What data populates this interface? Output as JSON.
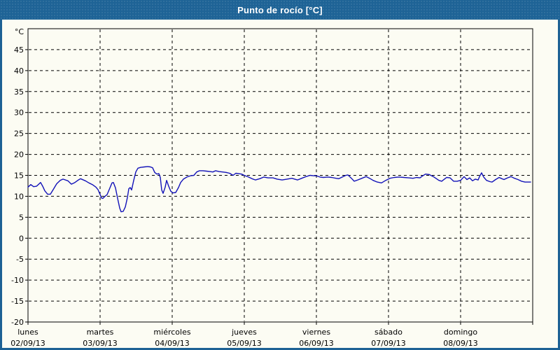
{
  "window": {
    "title": "Punto de rocío [°C]"
  },
  "colors": {
    "titlebar_bg": "#1e6396",
    "titlebar_text": "#ffffff",
    "frame_border": "#1d6194",
    "panel_bg": "#fcfcf3",
    "axis": "#000000",
    "grid": "#000000",
    "label_text": "#000000",
    "line": "#1212b8"
  },
  "chart_data": {
    "type": "line",
    "title": "Punto de rocío [°C]",
    "unit_label": "°C",
    "ylim": [
      -20,
      50
    ],
    "yticks": [
      45,
      40,
      35,
      30,
      25,
      20,
      15,
      10,
      5,
      0,
      -5,
      -10,
      -15,
      -20
    ],
    "grid": "dashed",
    "legend_position": "none",
    "x_days": [
      {
        "name": "lunes",
        "date": "02/09/13"
      },
      {
        "name": "martes",
        "date": "03/09/13"
      },
      {
        "name": "miércoles",
        "date": "04/09/13"
      },
      {
        "name": "jueves",
        "date": "05/09/13"
      },
      {
        "name": "viernes",
        "date": "06/09/13"
      },
      {
        "name": "sábado",
        "date": "07/09/13"
      },
      {
        "name": "domingo",
        "date": "08/09/13"
      }
    ],
    "series": [
      {
        "name": "Punto de rocío",
        "x_unit": "days_since_2013-09-02",
        "points": [
          [
            0.0,
            12.2
          ],
          [
            0.039,
            12.8
          ],
          [
            0.078,
            12.3
          ],
          [
            0.117,
            12.4
          ],
          [
            0.175,
            13.3
          ],
          [
            0.204,
            12.4
          ],
          [
            0.233,
            11.3
          ],
          [
            0.272,
            10.5
          ],
          [
            0.311,
            10.5
          ],
          [
            0.35,
            11.6
          ],
          [
            0.398,
            13.0
          ],
          [
            0.447,
            13.8
          ],
          [
            0.485,
            14.1
          ],
          [
            0.553,
            13.7
          ],
          [
            0.602,
            12.9
          ],
          [
            0.65,
            13.3
          ],
          [
            0.699,
            13.9
          ],
          [
            0.728,
            14.2
          ],
          [
            0.796,
            13.7
          ],
          [
            0.845,
            13.2
          ],
          [
            0.893,
            12.8
          ],
          [
            0.942,
            12.2
          ],
          [
            0.971,
            11.6
          ],
          [
            1.0,
            10.4
          ],
          [
            1.019,
            9.6
          ],
          [
            1.039,
            9.5
          ],
          [
            1.068,
            10.0
          ],
          [
            1.097,
            10.4
          ],
          [
            1.136,
            12.0
          ],
          [
            1.165,
            13.2
          ],
          [
            1.184,
            13.3
          ],
          [
            1.214,
            12.0
          ],
          [
            1.243,
            9.5
          ],
          [
            1.272,
            7.2
          ],
          [
            1.291,
            6.3
          ],
          [
            1.32,
            6.4
          ],
          [
            1.35,
            7.5
          ],
          [
            1.379,
            9.7
          ],
          [
            1.398,
            11.8
          ],
          [
            1.417,
            12.1
          ],
          [
            1.437,
            11.5
          ],
          [
            1.466,
            13.8
          ],
          [
            1.495,
            15.8
          ],
          [
            1.524,
            16.7
          ],
          [
            1.563,
            16.9
          ],
          [
            1.612,
            17.0
          ],
          [
            1.66,
            17.1
          ],
          [
            1.699,
            17.0
          ],
          [
            1.728,
            16.8
          ],
          [
            1.757,
            15.7
          ],
          [
            1.786,
            15.3
          ],
          [
            1.816,
            15.4
          ],
          [
            1.835,
            14.5
          ],
          [
            1.854,
            11.5
          ],
          [
            1.874,
            10.7
          ],
          [
            1.903,
            12.2
          ],
          [
            1.922,
            13.8
          ],
          [
            1.951,
            12.4
          ],
          [
            1.981,
            11.2
          ],
          [
            2.01,
            10.8
          ],
          [
            2.049,
            10.9
          ],
          [
            2.087,
            12.1
          ],
          [
            2.117,
            13.3
          ],
          [
            2.155,
            14.1
          ],
          [
            2.204,
            14.6
          ],
          [
            2.252,
            14.9
          ],
          [
            2.301,
            15.0
          ],
          [
            2.34,
            15.8
          ],
          [
            2.379,
            16.1
          ],
          [
            2.427,
            16.1
          ],
          [
            2.476,
            16.0
          ],
          [
            2.524,
            15.9
          ],
          [
            2.563,
            15.8
          ],
          [
            2.602,
            16.1
          ],
          [
            2.65,
            15.9
          ],
          [
            2.699,
            15.8
          ],
          [
            2.748,
            15.7
          ],
          [
            2.796,
            15.5
          ],
          [
            2.845,
            15.0
          ],
          [
            2.883,
            15.5
          ],
          [
            2.922,
            15.4
          ],
          [
            2.961,
            15.3
          ],
          [
            3.0,
            15.0
          ],
          [
            3.058,
            14.6
          ],
          [
            3.107,
            14.2
          ],
          [
            3.155,
            13.9
          ],
          [
            3.214,
            14.2
          ],
          [
            3.272,
            14.6
          ],
          [
            3.33,
            14.4
          ],
          [
            3.398,
            14.4
          ],
          [
            3.456,
            14.1
          ],
          [
            3.524,
            13.9
          ],
          [
            3.592,
            14.1
          ],
          [
            3.66,
            14.3
          ],
          [
            3.699,
            14.1
          ],
          [
            3.738,
            13.9
          ],
          [
            3.796,
            14.3
          ],
          [
            3.854,
            14.7
          ],
          [
            3.913,
            15.0
          ],
          [
            3.961,
            14.9
          ],
          [
            4.0,
            14.9
          ],
          [
            4.049,
            14.6
          ],
          [
            4.097,
            14.5
          ],
          [
            4.155,
            14.6
          ],
          [
            4.214,
            14.5
          ],
          [
            4.272,
            14.3
          ],
          [
            4.311,
            14.2
          ],
          [
            4.359,
            14.6
          ],
          [
            4.408,
            15.0
          ],
          [
            4.437,
            15.1
          ],
          [
            4.485,
            14.3
          ],
          [
            4.524,
            13.6
          ],
          [
            4.573,
            13.9
          ],
          [
            4.631,
            14.3
          ],
          [
            4.689,
            14.7
          ],
          [
            4.738,
            14.3
          ],
          [
            4.786,
            13.8
          ],
          [
            4.845,
            13.4
          ],
          [
            4.903,
            13.2
          ],
          [
            4.961,
            13.8
          ],
          [
            5.019,
            14.3
          ],
          [
            5.078,
            14.5
          ],
          [
            5.146,
            14.6
          ],
          [
            5.214,
            14.5
          ],
          [
            5.282,
            14.4
          ],
          [
            5.34,
            14.3
          ],
          [
            5.388,
            14.5
          ],
          [
            5.437,
            14.4
          ],
          [
            5.476,
            14.9
          ],
          [
            5.514,
            15.3
          ],
          [
            5.563,
            15.2
          ],
          [
            5.631,
            14.6
          ],
          [
            5.699,
            13.8
          ],
          [
            5.738,
            13.6
          ],
          [
            5.806,
            14.5
          ],
          [
            5.854,
            14.4
          ],
          [
            5.903,
            13.6
          ],
          [
            5.951,
            13.6
          ],
          [
            6.0,
            13.8
          ],
          [
            6.049,
            14.7
          ],
          [
            6.087,
            14.0
          ],
          [
            6.126,
            14.4
          ],
          [
            6.165,
            13.7
          ],
          [
            6.204,
            14.1
          ],
          [
            6.243,
            13.9
          ],
          [
            6.262,
            14.7
          ],
          [
            6.291,
            15.6
          ],
          [
            6.32,
            14.6
          ],
          [
            6.359,
            13.8
          ],
          [
            6.408,
            13.5
          ],
          [
            6.437,
            13.4
          ],
          [
            6.485,
            14.0
          ],
          [
            6.534,
            14.5
          ],
          [
            6.573,
            14.2
          ],
          [
            6.602,
            14.0
          ],
          [
            6.65,
            14.4
          ],
          [
            6.699,
            14.7
          ],
          [
            6.748,
            14.3
          ],
          [
            6.796,
            14.0
          ],
          [
            6.845,
            13.6
          ],
          [
            6.893,
            13.4
          ],
          [
            6.942,
            13.4
          ],
          [
            6.971,
            13.4
          ]
        ]
      }
    ]
  }
}
